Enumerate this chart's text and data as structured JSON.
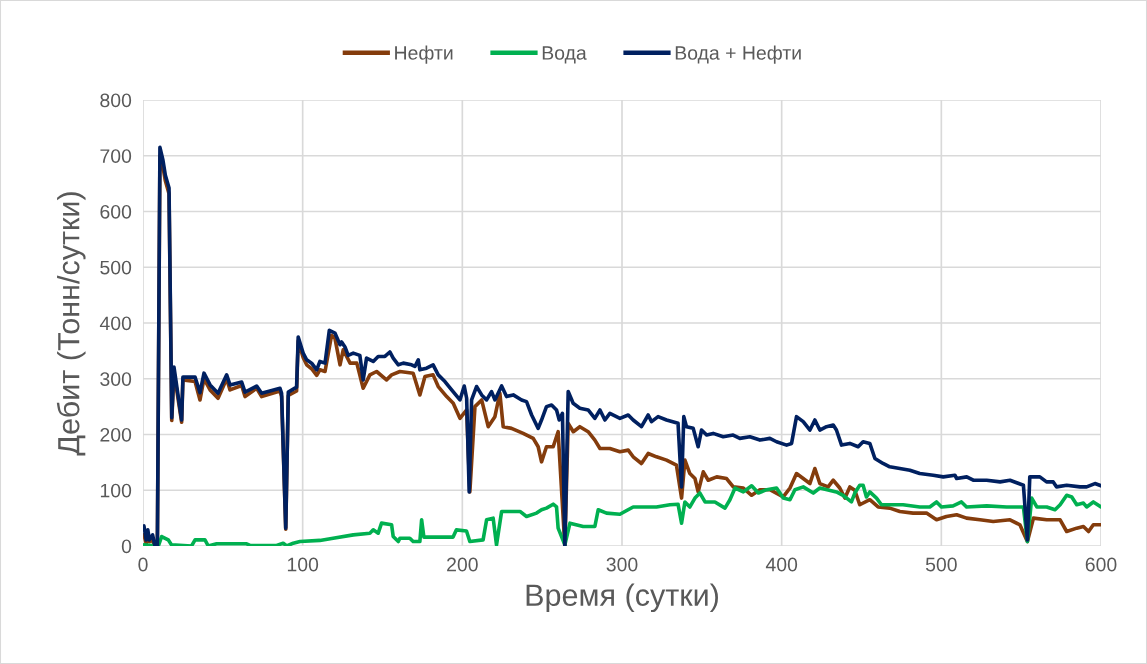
{
  "chart_data": {
    "type": "line",
    "xlabel": "Время (сутки)",
    "ylabel": "Дебит (Тонн/сутки)",
    "xlim": [
      0,
      600
    ],
    "xticks": [
      0,
      100,
      200,
      300,
      400,
      500,
      600
    ],
    "ylim": [
      0,
      800
    ],
    "yticks": [
      0,
      100,
      200,
      300,
      400,
      500,
      600,
      700,
      800
    ],
    "grid": true,
    "legend": "top",
    "marker": "none",
    "line_style": "solid",
    "series": [
      {
        "name": "Нефти",
        "color": "#843c0c",
        "x": [
          0.6,
          2,
          3,
          4,
          6,
          7.5,
          9,
          10.6,
          12.5,
          14,
          16.3,
          18,
          19.4,
          24.2,
          25,
          32.6,
          35.7,
          38.2,
          42,
          47,
          52.4,
          54.5,
          61.8,
          63.9,
          71.2,
          74.3,
          85.8,
          86.8,
          89.4,
          91,
          96.2,
          97.2,
          100.3,
          102.5,
          105.6,
          108.8,
          110.8,
          114,
          118.1,
          120.2,
          123.4,
          125.4,
          129.7,
          133.9,
          137.9,
          142.1,
          146.3,
          152.5,
          155.7,
          160.9,
          169.2,
          173.4,
          176.6,
          181.7,
          184.9,
          190.2,
          194.3,
          198.5,
          202.7,
          204.7,
          207.9,
          212.1,
          216.2,
          220.4,
          223.5,
          225.6,
          230.8,
          238.1,
          244.4,
          247.5,
          249.6,
          252.7,
          256.9,
          260,
          264.2,
          266.3,
          269.5,
          273.6,
          278.8,
          283,
          286.2,
          292.4,
          298.7,
          303.9,
          307,
          312.2,
          316.4,
          321.6,
          327.9,
          334.1,
          337.3,
          339.4,
          342.5,
          345.7,
          347.7,
          350.9,
          354,
          359.3,
          365.5,
          369.7,
          376,
          381.2,
          386.4,
          392.6,
          401,
          405.2,
          409.3,
          413.5,
          417.7,
          420.8,
          423.9,
          429.1,
          432.3,
          436.4,
          439.6,
          442.7,
          445.8,
          448.9,
          455.2,
          460.4,
          467.7,
          474,
          482.3,
          490.7,
          497,
          503.2,
          509.6,
          515.8,
          524.2,
          532.5,
          543,
          549.2,
          553.9,
          557.7,
          566,
          574.4,
          578.5,
          584.8,
          589,
          592.2,
          595.2,
          600
        ],
        "values": [
          20,
          5,
          15,
          8,
          10,
          0,
          0,
          700,
          680,
          655,
          632,
          225,
          312,
          222,
          298,
          295,
          262,
          300,
          280,
          265,
          300,
          280,
          288,
          268,
          283,
          268,
          278,
          268,
          30,
          270,
          278,
          368,
          338,
          325,
          318,
          306,
          316,
          313,
          378,
          373,
          325,
          352,
          328,
          328,
          283,
          307,
          313,
          298,
          307,
          313,
          310,
          271,
          304,
          307,
          286,
          268,
          256,
          229,
          244,
          97,
          250,
          262,
          214,
          232,
          274,
          214,
          211,
          202,
          193,
          178,
          151,
          178,
          178,
          205,
          0,
          220,
          205,
          214,
          205,
          190,
          175,
          175,
          169,
          172,
          160,
          148,
          166,
          160,
          154,
          145,
          86,
          154,
          130,
          121,
          97,
          133,
          118,
          124,
          121,
          106,
          104,
          91,
          101,
          101,
          88,
          104,
          130,
          121,
          112,
          139,
          112,
          106,
          118,
          104,
          86,
          106,
          100,
          74,
          83,
          70,
          68,
          62,
          59,
          59,
          47,
          53,
          56,
          50,
          47,
          44,
          47,
          38,
          8,
          50,
          47,
          47,
          26,
          32,
          35,
          26,
          38,
          38
        ]
      },
      {
        "name": "Вода",
        "color": "#00b050",
        "x": [
          0.6,
          9.6,
          11.7,
          15.8,
          17.9,
          30.4,
          32.6,
          38.8,
          40.9,
          46.1,
          64.9,
          67,
          83.7,
          87.8,
          90,
          94.1,
          98.3,
          110.8,
          119.1,
          131.7,
          142.1,
          144.2,
          147.3,
          149.4,
          155.7,
          156.7,
          159.9,
          160.9,
          167.1,
          169.2,
          173.4,
          174.5,
          175.9,
          194.2,
          196.3,
          202.6,
          204.7,
          213,
          215.2,
          219.3,
          221.4,
          224.6,
          236.1,
          240.2,
          246.5,
          249.6,
          252.7,
          256.9,
          259,
          260,
          264.2,
          267.4,
          275.7,
          283,
          285.1,
          290.3,
          298.7,
          307,
          321.6,
          330,
          335.1,
          337.3,
          339.4,
          342.5,
          345.7,
          348.8,
          352,
          358.2,
          364.5,
          367.6,
          370.8,
          376,
          381.2,
          385.4,
          390.6,
          396.8,
          401,
          405.2,
          408.3,
          413.5,
          419.8,
          423.9,
          434.3,
          438.4,
          443.7,
          445.8,
          448.9,
          451,
          453.1,
          455.2,
          459.4,
          462.5,
          476,
          486.5,
          492.8,
          497,
          500.1,
          507.4,
          512.6,
          515.8,
          528.4,
          540.9,
          551.4,
          553.9,
          556.6,
          559.8,
          566,
          571.2,
          574.4,
          578.5,
          581.7,
          584.8,
          589,
          591,
          595.2,
          600
        ],
        "values": [
          2,
          0,
          17,
          11,
          2,
          0,
          11,
          11,
          0,
          4,
          4,
          1,
          1,
          5,
          0,
          5,
          8,
          10,
          14,
          20,
          23,
          29,
          23,
          41,
          38,
          17,
          8,
          14,
          14,
          8,
          8,
          47,
          16,
          16,
          29,
          27,
          8,
          11,
          47,
          50,
          2,
          62,
          62,
          53,
          59,
          65,
          68,
          75,
          70,
          32,
          2,
          41,
          35,
          35,
          65,
          59,
          57,
          70,
          70,
          74,
          75,
          41,
          79,
          70,
          86,
          95,
          79,
          79,
          68,
          83,
          104,
          97,
          108,
          95,
          101,
          104,
          86,
          83,
          101,
          106,
          95,
          104,
          97,
          91,
          79,
          95,
          109,
          109,
          88,
          97,
          86,
          74,
          74,
          70,
          70,
          79,
          70,
          72,
          79,
          70,
          72,
          70,
          70,
          8,
          86,
          70,
          70,
          65,
          74,
          91,
          88,
          74,
          77,
          70,
          79,
          70
        ]
      },
      {
        "name": "Вода + Нефти",
        "color": "#002060",
        "x": [
          0.6,
          2,
          3,
          4,
          6,
          7.5,
          9,
          10.6,
          12.5,
          14,
          16.3,
          18,
          19.4,
          24.2,
          25,
          32.6,
          35.7,
          38.2,
          42,
          47,
          52.4,
          54.5,
          61.8,
          63.9,
          71.2,
          74.3,
          85.8,
          86.8,
          89.4,
          91,
          96.2,
          97.2,
          100.3,
          102.5,
          105.6,
          108.8,
          110.8,
          114,
          116.7,
          120.2,
          123.4,
          124.4,
          126.5,
          128.5,
          131.7,
          135.8,
          137.9,
          140,
          144.2,
          147.3,
          151.5,
          154.6,
          156.7,
          159.9,
          163,
          168.2,
          170.3,
          172.4,
          173.4,
          177.6,
          181.7,
          184.9,
          189.1,
          193.3,
          198.5,
          201.2,
          202.7,
          204.3,
          205.8,
          208.9,
          212.1,
          215.2,
          218.3,
          220.4,
          224.6,
          227.7,
          231.9,
          237.1,
          240.2,
          243.4,
          247.5,
          249.6,
          252.7,
          255.9,
          259,
          260.7,
          262.7,
          264.2,
          266.3,
          269.4,
          273.6,
          278.8,
          283,
          286.2,
          289.3,
          292.4,
          298.7,
          303.9,
          307,
          312.2,
          316.4,
          318.5,
          322.6,
          327.9,
          335.1,
          337.3,
          338.7,
          340.4,
          344.6,
          347.7,
          349.8,
          353,
          357.1,
          363.4,
          369.6,
          373.8,
          380.1,
          386.4,
          392.6,
          396.8,
          403.1,
          406.2,
          409.3,
          413.5,
          417.7,
          420.8,
          423.9,
          428.1,
          432.3,
          434.3,
          437.5,
          442.7,
          447.9,
          451,
          455.2,
          458.4,
          463.5,
          467.7,
          474,
          480.3,
          486.5,
          494.9,
          501.2,
          508.5,
          509.6,
          515.9,
          520,
          528.4,
          536.8,
          543,
          551.4,
          553.9,
          555.4,
          561.7,
          565.9,
          570.1,
          572.2,
          578.5,
          586.8,
          591,
          596.2,
          600
        ],
        "values": [
          36,
          11,
          29,
          11,
          20,
          0,
          0,
          715,
          692,
          665,
          642,
          230,
          321,
          226,
          303,
          303,
          275,
          310,
          289,
          274,
          307,
          289,
          294,
          276,
          287,
          274,
          283,
          274,
          32,
          276,
          285,
          375,
          346,
          334,
          328,
          316,
          331,
          328,
          387,
          382,
          361,
          366,
          357,
          342,
          346,
          342,
          298,
          337,
          331,
          340,
          340,
          348,
          337,
          325,
          328,
          325,
          322,
          334,
          316,
          319,
          325,
          307,
          295,
          280,
          262,
          287,
          265,
          97,
          262,
          286,
          271,
          262,
          277,
          262,
          287,
          268,
          271,
          262,
          259,
          235,
          211,
          226,
          250,
          253,
          244,
          226,
          238,
          0,
          277,
          256,
          247,
          244,
          229,
          244,
          226,
          238,
          229,
          235,
          226,
          214,
          235,
          223,
          232,
          226,
          220,
          106,
          232,
          214,
          211,
          178,
          208,
          199,
          202,
          196,
          199,
          193,
          196,
          190,
          193,
          187,
          181,
          184,
          232,
          223,
          208,
          226,
          208,
          214,
          217,
          208,
          181,
          184,
          178,
          187,
          184,
          157,
          148,
          142,
          139,
          136,
          130,
          127,
          124,
          127,
          121,
          124,
          118,
          118,
          115,
          118,
          109,
          11,
          124,
          124,
          115,
          115,
          106,
          109,
          106,
          106,
          112,
          108
        ]
      }
    ]
  }
}
